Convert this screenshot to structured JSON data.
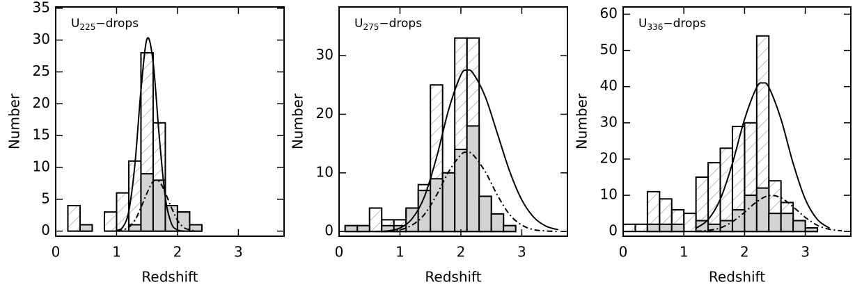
{
  "chart_data": [
    {
      "type": "histogram",
      "xlabel": "Redshift",
      "ylabel": "Number",
      "label": {
        "main": "U",
        "sub": "225",
        "rest": "−drops"
      },
      "xlim": [
        0,
        3.75
      ],
      "xticks": [
        0,
        1,
        2,
        3
      ],
      "ylim": [
        -0.8,
        35.2
      ],
      "yticks": [
        0,
        5,
        10,
        15,
        20,
        25,
        30,
        35
      ],
      "bins": [
        0.2,
        0.4,
        0.6,
        0.8,
        1.0,
        1.2,
        1.4,
        1.6,
        1.8,
        2.0,
        2.2,
        2.4
      ],
      "series": [
        {
          "pattern": "hatch",
          "color": "#b0b0b0",
          "values": [
            4,
            1,
            0,
            3,
            6,
            11,
            28,
            17,
            4,
            3,
            1
          ]
        },
        {
          "pattern": "solid",
          "color": "#d3d3d3",
          "values": [
            0,
            1,
            0,
            0,
            0,
            1,
            9,
            8,
            4,
            3,
            1
          ]
        }
      ],
      "curves": [
        {
          "dash": "solid",
          "x": [
            1.0,
            1.1,
            1.2,
            1.3,
            1.4,
            1.5,
            1.6,
            1.7,
            1.8,
            1.9,
            2.0,
            2.1
          ],
          "values": [
            0.1,
            0.6,
            3.1,
            10.4,
            22.1,
            30.2,
            26.5,
            14.9,
            5.3,
            1.2,
            0.2,
            0.0
          ]
        },
        {
          "dash": "dashdot",
          "x": [
            1.0,
            1.1,
            1.2,
            1.3,
            1.4,
            1.5,
            1.6,
            1.7,
            1.8,
            1.9,
            2.0,
            2.1,
            2.2,
            2.3
          ],
          "values": [
            0.0,
            0.2,
            0.6,
            1.7,
            3.7,
            6.0,
            7.8,
            7.8,
            6.0,
            3.7,
            1.7,
            0.6,
            0.2,
            0.0
          ]
        }
      ]
    },
    {
      "type": "histogram",
      "xlabel": "Redshift",
      "ylabel": "Number",
      "label": {
        "main": "U",
        "sub": "275",
        "rest": "−drops"
      },
      "xlim": [
        0,
        3.75
      ],
      "xticks": [
        0,
        1,
        2,
        3
      ],
      "ylim": [
        -0.8,
        38.3
      ],
      "yticks": [
        0,
        10,
        20,
        30
      ],
      "bins": [
        0.1,
        0.3,
        0.5,
        0.7,
        0.9,
        1.1,
        1.3,
        1.5,
        1.7,
        1.9,
        2.1,
        2.3,
        2.5,
        2.7,
        2.9
      ],
      "series": [
        {
          "pattern": "hatch",
          "color": "#b0b0b0",
          "values": [
            1,
            1,
            4,
            2,
            2,
            4,
            8,
            25,
            10,
            33,
            33,
            6,
            3,
            1
          ]
        },
        {
          "pattern": "solid",
          "color": "#d3d3d3",
          "values": [
            1,
            1,
            0,
            1,
            1,
            4,
            7,
            9,
            10,
            14,
            18,
            6,
            3,
            1
          ]
        }
      ],
      "curves": [
        {
          "dash": "solid",
          "x": [
            0.6,
            0.8,
            1.0,
            1.2,
            1.4,
            1.6,
            1.8,
            2.0,
            2.1,
            2.2,
            2.4,
            2.6,
            2.8,
            3.0,
            3.2,
            3.4,
            3.6
          ],
          "values": [
            0.0,
            0.1,
            0.6,
            2.2,
            5.9,
            12.6,
            20.8,
            26.7,
            27.5,
            27.0,
            23.0,
            16.7,
            10.3,
            5.4,
            2.4,
            0.9,
            0.3
          ]
        },
        {
          "dash": "dashdot",
          "x": [
            0.6,
            0.8,
            1.0,
            1.2,
            1.4,
            1.6,
            1.8,
            2.0,
            2.1,
            2.2,
            2.4,
            2.6,
            2.8,
            3.0,
            3.2,
            3.4,
            3.6
          ],
          "values": [
            0.0,
            0.1,
            0.3,
            1.1,
            2.9,
            6.2,
            10.2,
            13.1,
            13.5,
            13.1,
            10.2,
            6.2,
            2.9,
            1.1,
            0.3,
            0.1,
            0.0
          ]
        }
      ]
    },
    {
      "type": "histogram",
      "xlabel": "Redshift",
      "ylabel": "Number",
      "label": {
        "main": "U",
        "sub": "336",
        "rest": "−drops"
      },
      "xlim": [
        0,
        3.75
      ],
      "xticks": [
        0,
        1,
        2,
        3
      ],
      "ylim": [
        -1.3,
        62
      ],
      "yticks": [
        0,
        10,
        20,
        30,
        40,
        50,
        60
      ],
      "bins": [
        0.0,
        0.2,
        0.4,
        0.6,
        0.8,
        1.0,
        1.2,
        1.4,
        1.6,
        1.8,
        2.0,
        2.2,
        2.4,
        2.6,
        2.8,
        3.0,
        3.2,
        3.4
      ],
      "series": [
        {
          "pattern": "hatch",
          "color": "#b0b0b0",
          "values": [
            2,
            2,
            11,
            9,
            6,
            5,
            15,
            19,
            23,
            29,
            30,
            54,
            14,
            8,
            3,
            1,
            0
          ]
        },
        {
          "pattern": "solid",
          "color": "#d3d3d3",
          "values": [
            0,
            0,
            2,
            2,
            2,
            0,
            3,
            2,
            3,
            6,
            10,
            12,
            5,
            5,
            3,
            1,
            0
          ]
        }
      ],
      "curves": [
        {
          "dash": "solid",
          "x": [
            1.2,
            1.4,
            1.6,
            1.8,
            2.0,
            2.2,
            2.3,
            2.4,
            2.6,
            2.8,
            3.0,
            3.2,
            3.4
          ],
          "values": [
            0.9,
            3.3,
            8.9,
            18.8,
            31.0,
            39.8,
            41.0,
            39.8,
            31.0,
            18.8,
            8.9,
            3.3,
            0.9
          ]
        },
        {
          "dash": "dashdot",
          "x": [
            1.2,
            1.4,
            1.6,
            1.8,
            2.0,
            2.2,
            2.4,
            2.6,
            2.8,
            3.0,
            3.2,
            3.4,
            3.6
          ],
          "values": [
            0.1,
            0.3,
            1.0,
            2.7,
            5.3,
            8.2,
            9.9,
            9.3,
            6.8,
            3.9,
            1.7,
            0.6,
            0.2
          ]
        }
      ]
    }
  ]
}
